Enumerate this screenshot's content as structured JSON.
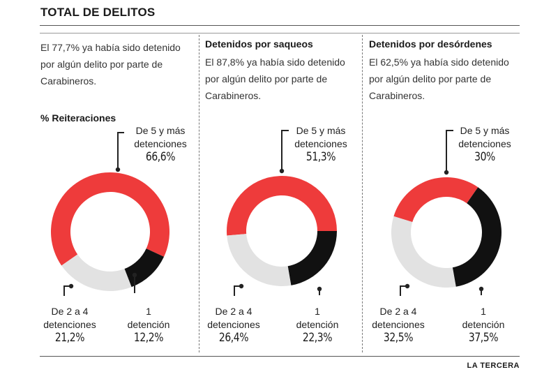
{
  "header": {
    "title": "TOTAL DE DELITOS"
  },
  "source": "LA TERCERA",
  "colors": {
    "red": "#ee3b3b",
    "black": "#111111",
    "gray": "#e2e2e2"
  },
  "columns": [
    {
      "title": "",
      "description": "El 77,7% ya había sido detenido por algún delito por parte de Carabineros.",
      "subtitle": "% Reiteraciones"
    },
    {
      "title": "Detenidos por saqueos",
      "description": "El 87,8% ya había sido detenido por algún delito por parte de Carabineros."
    },
    {
      "title": "Detenidos por desórdenes",
      "description": "El 62,5% ya había sido detenido por algún delito por parte de Carabineros."
    }
  ],
  "chart_data": [
    {
      "type": "pie",
      "categories": [
        "De 5 y más detenciones",
        "1 detención",
        "De 2 a 4 detenciones"
      ],
      "values": [
        66.6,
        12.2,
        21.2
      ],
      "value_labels": [
        "66,6%",
        "12,2%",
        "21,2%"
      ],
      "title": "",
      "legend": "none"
    },
    {
      "type": "pie",
      "categories": [
        "De 5 y más detenciones",
        "1 detención",
        "De 2 a 4 detenciones"
      ],
      "values": [
        51.3,
        22.3,
        26.4
      ],
      "value_labels": [
        "51,3%",
        "22,3%",
        "26,4%"
      ],
      "title": "Detenidos por saqueos",
      "legend": "none"
    },
    {
      "type": "pie",
      "categories": [
        "De 5 y más detenciones",
        "1 detención",
        "De 2 a 4 detenciones"
      ],
      "values": [
        30,
        37.5,
        32.5
      ],
      "value_labels": [
        "30%",
        "37,5%",
        "32,5%"
      ],
      "title": "Detenidos por desórdenes",
      "legend": "none"
    }
  ],
  "labels": {
    "five_line1": "De 5 y más",
    "five_line2": "detenciones",
    "one_line1": "1",
    "one_line2": "detención",
    "two_line1": "De 2 a 4",
    "two_line2": "detenciones"
  }
}
